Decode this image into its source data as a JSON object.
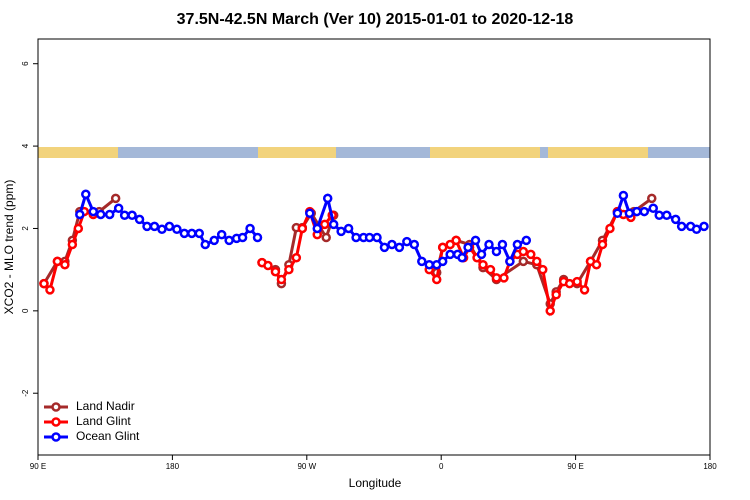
{
  "chart_data": {
    "type": "line",
    "title": "37.5N-42.5N March (Ver 10)   2015-01-01 to 2020-12-18",
    "x_label": "Longitude",
    "y_label": "XCO2 - MLO trend (ppm)",
    "xlim": [
      90,
      540
    ],
    "ylim": [
      -3.5,
      6.6
    ],
    "xticks": [
      {
        "value": 90,
        "label": "90 E"
      },
      180,
      {
        "value": 270,
        "label": "90 W"
      },
      {
        "value": 360,
        "label": "0"
      },
      {
        "value": 450,
        "label": "90 E"
      },
      {
        "value": 540,
        "label": "180"
      }
    ],
    "yticks": [
      -2,
      0,
      2,
      4,
      6
    ],
    "legend": "bottom-left",
    "series": [
      {
        "name": "Land Nadir",
        "color": "#a52a2a",
        "x": [
          94,
          103,
          108,
          113,
          118,
          131,
          142,
          null,
          240,
          249,
          253,
          258,
          263,
          267,
          273,
          283,
          288,
          null,
          357,
          361,
          370,
          379,
          388,
          397,
          415,
          424,
          433,
          437,
          442,
          451,
          460,
          468,
          478,
          489,
          501
        ],
        "values": [
          0.66,
          1.2,
          1.2,
          1.71,
          2.41,
          2.41,
          2.73,
          null,
          1.17,
          1.0,
          0.66,
          1.12,
          2.02,
          2.02,
          2.37,
          1.78,
          2.32,
          null,
          0.93,
          1.54,
          1.71,
          1.61,
          1.05,
          0.76,
          1.2,
          1.12,
          0.17,
          0.46,
          0.76,
          0.66,
          1.2,
          1.71,
          2.41,
          2.41,
          2.73
        ]
      },
      {
        "name": "Land Glint",
        "color": "#ff0000",
        "x": [
          94,
          98,
          103,
          108,
          113,
          117,
          121,
          127,
          null,
          240,
          244,
          249,
          253,
          258,
          263,
          267,
          272,
          277,
          282,
          287,
          null,
          352,
          357,
          361,
          366,
          370,
          375,
          379,
          384,
          388,
          393,
          397,
          402,
          406,
          411,
          415,
          420,
          424,
          428,
          433,
          437,
          442,
          446,
          451,
          456,
          460,
          464,
          468,
          473,
          478,
          482,
          487
        ],
        "values": [
          0.66,
          0.51,
          1.2,
          1.12,
          1.61,
          2.0,
          2.41,
          2.34,
          null,
          1.17,
          1.1,
          0.95,
          0.76,
          1.0,
          1.29,
          2.0,
          2.41,
          1.85,
          2.1,
          2.32,
          null,
          1.0,
          0.76,
          1.54,
          1.61,
          1.71,
          1.29,
          1.54,
          1.29,
          1.12,
          1.0,
          0.8,
          0.8,
          1.2,
          1.37,
          1.44,
          1.37,
          1.2,
          1.0,
          0.0,
          0.39,
          0.71,
          0.66,
          0.71,
          0.51,
          1.2,
          1.12,
          1.61,
          2.0,
          2.41,
          2.34,
          2.27
        ]
      },
      {
        "name": "Ocean Glint",
        "color": "#0000ff",
        "x": [
          118,
          122,
          127,
          132,
          138,
          144,
          148,
          153,
          158,
          163,
          168,
          173,
          178,
          183,
          188,
          193,
          198,
          202,
          208,
          213,
          218,
          223,
          227,
          232,
          237,
          null,
          272,
          277,
          284,
          288,
          293,
          298,
          303,
          308,
          312,
          317,
          322,
          327,
          332,
          337,
          342,
          347,
          352,
          357,
          361,
          366,
          371,
          374,
          378,
          383,
          387,
          392,
          397,
          401,
          406,
          411,
          417,
          null,
          478,
          482,
          486,
          491,
          496,
          502,
          506,
          511,
          517,
          521,
          527,
          531,
          536
        ],
        "values": [
          2.34,
          2.83,
          2.41,
          2.34,
          2.34,
          2.49,
          2.32,
          2.32,
          2.22,
          2.05,
          2.05,
          1.98,
          2.05,
          1.98,
          1.88,
          1.88,
          1.88,
          1.61,
          1.71,
          1.85,
          1.71,
          1.76,
          1.78,
          2.0,
          1.78,
          null,
          2.37,
          2.0,
          2.73,
          2.1,
          1.93,
          2.0,
          1.78,
          1.78,
          1.78,
          1.78,
          1.54,
          1.61,
          1.54,
          1.68,
          1.61,
          1.2,
          1.12,
          1.12,
          1.2,
          1.37,
          1.37,
          1.29,
          1.54,
          1.71,
          1.37,
          1.61,
          1.44,
          1.61,
          1.2,
          1.61,
          1.71,
          null,
          2.37,
          2.8,
          2.37,
          2.41,
          2.41,
          2.49,
          2.32,
          2.32,
          2.22,
          2.05,
          2.05,
          1.98,
          2.05
        ]
      }
    ]
  }
}
